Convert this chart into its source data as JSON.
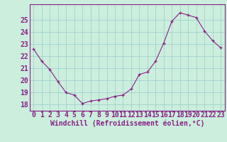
{
  "x": [
    0,
    1,
    2,
    3,
    4,
    5,
    6,
    7,
    8,
    9,
    10,
    11,
    12,
    13,
    14,
    15,
    16,
    17,
    18,
    19,
    20,
    21,
    22,
    23
  ],
  "y": [
    22.6,
    21.6,
    20.9,
    19.9,
    19.0,
    18.8,
    18.1,
    18.3,
    18.4,
    18.5,
    18.7,
    18.8,
    19.3,
    20.5,
    20.7,
    21.6,
    23.1,
    24.9,
    25.6,
    25.4,
    25.2,
    24.1,
    23.3,
    22.7
  ],
  "line_color": "#882288",
  "marker": "+",
  "marker_color": "#882288",
  "bg_color": "#cceedd",
  "grid_color": "#99cccc",
  "tick_color": "#882288",
  "xlabel": "Windchill (Refroidissement éolien,°C)",
  "xlabel_color": "#882288",
  "ylabel_ticks": [
    18,
    19,
    20,
    21,
    22,
    23,
    24,
    25
  ],
  "ylim": [
    17.5,
    26.3
  ],
  "xlim": [
    -0.5,
    23.5
  ],
  "xtick_labels": [
    "0",
    "1",
    "2",
    "3",
    "4",
    "5",
    "6",
    "7",
    "8",
    "9",
    "10",
    "11",
    "12",
    "13",
    "14",
    "15",
    "16",
    "17",
    "18",
    "19",
    "20",
    "21",
    "22",
    "23"
  ],
  "font_size_xlabel": 7,
  "font_size_ticks": 7,
  "linewidth": 0.8,
  "markersize": 3.5
}
